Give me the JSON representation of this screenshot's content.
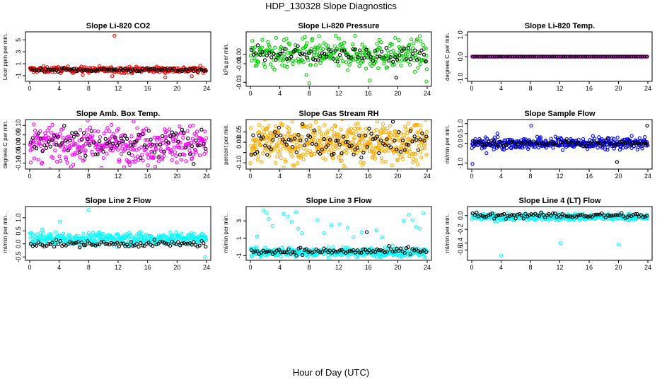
{
  "figure": {
    "title": "HDP_130328  Slope Diagnostics",
    "xlabel": "Hour of Day (UTC)"
  },
  "chart_data": [
    {
      "type": "scatter",
      "title": "Slope Li-820 CO2",
      "ylabel": "Licor ppm per min.",
      "xlim": [
        0,
        24
      ],
      "ylim": [
        -1.6,
        6
      ],
      "xticks": [
        "0",
        "4",
        "8",
        "12",
        "16",
        "20",
        "24"
      ],
      "yticks": [
        -1,
        1,
        3,
        5
      ],
      "ytick_labels": [
        "-1",
        "1",
        "3",
        "5"
      ],
      "grid": false,
      "series": [
        {
          "name": "diagnostic",
          "color": "#ff0000",
          "n": 300,
          "center": 0,
          "spread": 0.25,
          "outliers": [
            [
              11.5,
              5.7
            ],
            [
              11.2,
              -1.1
            ],
            [
              18.4,
              -1.3
            ],
            [
              22.0,
              -1.1
            ],
            [
              7.2,
              -0.9
            ]
          ]
        },
        {
          "name": "reference",
          "color": "#000000",
          "n": 90,
          "center": 0,
          "spread": 0.15,
          "outliers": []
        }
      ]
    },
    {
      "type": "scatter",
      "title": "Slope Li-820 Pressure",
      "ylabel": "kPa per min.",
      "xlim": [
        0,
        24
      ],
      "ylim": [
        -0.032,
        0.022
      ],
      "xticks": [
        "0",
        "4",
        "8",
        "12",
        "16",
        "20",
        "24"
      ],
      "yticks": [
        -0.03,
        -0.01,
        0.0
      ],
      "ytick_labels": [
        "-0.03",
        "-0.01",
        "0.00"
      ],
      "grid": false,
      "series": [
        {
          "name": "diagnostic",
          "color": "#00cc00",
          "n": 320,
          "center": 0.0,
          "spread": 0.008,
          "outliers": [
            [
              8.0,
              -0.031
            ],
            [
              16.2,
              -0.028
            ],
            [
              23.9,
              -0.029
            ],
            [
              7.6,
              -0.022
            ]
          ]
        },
        {
          "name": "reference",
          "color": "#000000",
          "n": 80,
          "center": 0.0,
          "spread": 0.004,
          "outliers": [
            [
              19.8,
              -0.025
            ]
          ]
        }
      ]
    },
    {
      "type": "scatter",
      "title": "Slope Li-820 Temp.",
      "ylabel": "degrees C per min.",
      "xlim": [
        0,
        24
      ],
      "ylim": [
        -1.05,
        1.05
      ],
      "xticks": [
        "0",
        "4",
        "8",
        "12",
        "16",
        "20",
        "24"
      ],
      "yticks": [
        -1.0,
        0.0,
        1.0
      ],
      "ytick_labels": [
        "-1.0",
        "0.0",
        "1.0"
      ],
      "grid": false,
      "series": [
        {
          "name": "diagnostic",
          "color": "#ff00ff",
          "n": 240,
          "center": 0,
          "spread": 0.0,
          "outliers": []
        },
        {
          "name": "reference",
          "color": "#000000",
          "n": 80,
          "center": 0,
          "spread": 0.0,
          "outliers": []
        }
      ]
    },
    {
      "type": "scatter",
      "title": "Slope Amb. Box Temp.",
      "ylabel": "degrees C per min.",
      "xlim": [
        0,
        24
      ],
      "ylim": [
        -0.12,
        0.12
      ],
      "xticks": [
        "0",
        "4",
        "8",
        "12",
        "16",
        "20",
        "24"
      ],
      "yticks": [
        -0.1,
        -0.05,
        0.0,
        0.05,
        0.1
      ],
      "ytick_labels": [
        "-0.10",
        "-0.05",
        "0.00",
        "0.05",
        "0.10"
      ],
      "grid": false,
      "series": [
        {
          "name": "diagnostic",
          "color": "#ff00ff",
          "n": 360,
          "center": 0,
          "spread": 0.05,
          "outliers": []
        },
        {
          "name": "reference",
          "color": "#000000",
          "n": 90,
          "center": 0,
          "spread": 0.04,
          "outliers": []
        }
      ]
    },
    {
      "type": "scatter",
      "title": "Slope Gas Stream RH",
      "ylabel": "percent per min.",
      "xlim": [
        0,
        24
      ],
      "ylim": [
        -0.12,
        0.1
      ],
      "xticks": [
        "0",
        "4",
        "8",
        "12",
        "16",
        "20",
        "24"
      ],
      "yticks": [
        -0.1,
        -0.05,
        0.0,
        0.05
      ],
      "ytick_labels": [
        "-0.10",
        "",
        "0.00",
        "0.05"
      ],
      "grid": false,
      "series": [
        {
          "name": "diagnostic",
          "color": "#ffaa00",
          "n": 520,
          "center": 0,
          "spread": 0.05,
          "outliers": []
        },
        {
          "name": "reference",
          "color": "#000000",
          "n": 90,
          "center": 0,
          "spread": 0.035,
          "outliers": []
        }
      ]
    },
    {
      "type": "scatter",
      "title": "Slope Sample Flow",
      "ylabel": "ml/min per min.",
      "xlim": [
        0,
        24
      ],
      "ylim": [
        -1.2,
        1.1
      ],
      "xticks": [
        "0",
        "4",
        "8",
        "12",
        "16",
        "20",
        "24"
      ],
      "yticks": [
        -1.0,
        0.0,
        0.5,
        1.0
      ],
      "ytick_labels": [
        "-1.0",
        "0.0",
        "0.5",
        "1.0"
      ],
      "grid": false,
      "series": [
        {
          "name": "diagnostic",
          "color": "#0000ff",
          "n": 380,
          "center": 0,
          "spread": 0.15,
          "outliers": [
            [
              0.1,
              -1.05
            ],
            [
              8.1,
              0.9
            ],
            [
              3.5,
              0.5
            ],
            [
              2.0,
              -0.5
            ]
          ]
        },
        {
          "name": "reference",
          "color": "#000000",
          "n": 90,
          "center": 0,
          "spread": 0.08,
          "outliers": [
            [
              19.8,
              -0.95
            ],
            [
              23.9,
              0.9
            ]
          ]
        }
      ]
    },
    {
      "type": "scatter",
      "title": "Slope Line 2 Flow",
      "ylabel": "ml/min per min.",
      "xlim": [
        0,
        24
      ],
      "ylim": [
        -0.55,
        1.35
      ],
      "xticks": [
        "0",
        "4",
        "8",
        "12",
        "16",
        "20",
        "24"
      ],
      "yticks": [
        -0.5,
        0.0,
        0.5,
        1.0
      ],
      "ytick_labels": [
        "-0.5",
        "0.0",
        "0.5",
        "1.0"
      ],
      "grid": false,
      "series": [
        {
          "name": "diagnostic",
          "color": "#00ffff",
          "n": 380,
          "center": 0.2,
          "spread": 0.12,
          "outliers": [
            [
              8.0,
              1.3
            ],
            [
              4.1,
              0.85
            ],
            [
              1.7,
              0.55
            ],
            [
              23.8,
              -0.5
            ]
          ]
        },
        {
          "name": "reference",
          "color": "#000000",
          "n": 90,
          "center": 0.0,
          "spread": 0.06,
          "outliers": []
        }
      ]
    },
    {
      "type": "scatter",
      "title": "Slope Line 3 Flow",
      "ylabel": "ml/min per min.",
      "xlim": [
        0,
        24
      ],
      "ylim": [
        -1.3,
        4.4
      ],
      "xticks": [
        "0",
        "4",
        "8",
        "12",
        "16",
        "20",
        "24"
      ],
      "yticks": [
        -1,
        1,
        3
      ],
      "ytick_labels": [
        "-1",
        "1",
        "3"
      ],
      "grid": false,
      "series": [
        {
          "name": "diagnostic",
          "color": "#00ffff",
          "n": 400,
          "center": -0.6,
          "spread": 0.25,
          "outliers": [
            [
              1.8,
              4.2
            ],
            [
              2.2,
              3.9
            ],
            [
              2.5,
              3.2
            ],
            [
              3.0,
              2.4
            ],
            [
              4.5,
              3.8
            ],
            [
              5.1,
              3.5
            ],
            [
              5.6,
              2.9
            ],
            [
              6.2,
              4.0
            ],
            [
              6.5,
              2.1
            ],
            [
              7.0,
              1.6
            ],
            [
              9.1,
              3.1
            ],
            [
              10.0,
              1.6
            ],
            [
              11.0,
              2.5
            ],
            [
              12.1,
              2.6
            ],
            [
              13.2,
              2.2
            ],
            [
              14.0,
              1.1
            ],
            [
              15.1,
              1.7
            ],
            [
              17.1,
              1.9
            ],
            [
              17.9,
              1.1
            ],
            [
              20.8,
              3.0
            ],
            [
              21.5,
              3.7
            ],
            [
              22.0,
              3.1
            ],
            [
              22.5,
              2.3
            ],
            [
              23.0,
              2.1
            ],
            [
              23.5,
              3.9
            ],
            [
              23.8,
              -1.2
            ],
            [
              0.9,
              1.2
            ]
          ]
        },
        {
          "name": "reference",
          "color": "#000000",
          "n": 90,
          "center": -0.5,
          "spread": 0.2,
          "outliers": [
            [
              15.8,
              1.7
            ]
          ]
        }
      ]
    },
    {
      "type": "scatter",
      "title": "Slope Line 4 (LT) Flow",
      "ylabel": "ml/min per min.",
      "xlim": [
        0,
        24
      ],
      "ylim": [
        -0.62,
        0.1
      ],
      "xticks": [
        "0",
        "4",
        "8",
        "12",
        "16",
        "20",
        "24"
      ],
      "yticks": [
        -0.5,
        -0.4,
        -0.2,
        0.0
      ],
      "ytick_labels": [
        "-0.5",
        "-0.4",
        "-0.2",
        "0.0"
      ],
      "grid": false,
      "series": [
        {
          "name": "diagnostic",
          "color": "#00ffff",
          "n": 360,
          "center": -0.02,
          "spread": 0.025,
          "outliers": [
            [
              4.0,
              -0.58
            ],
            [
              12.1,
              -0.4
            ],
            [
              20.0,
              -0.42
            ]
          ]
        },
        {
          "name": "reference",
          "color": "#000000",
          "n": 90,
          "center": 0.0,
          "spread": 0.02,
          "outliers": []
        }
      ]
    }
  ]
}
